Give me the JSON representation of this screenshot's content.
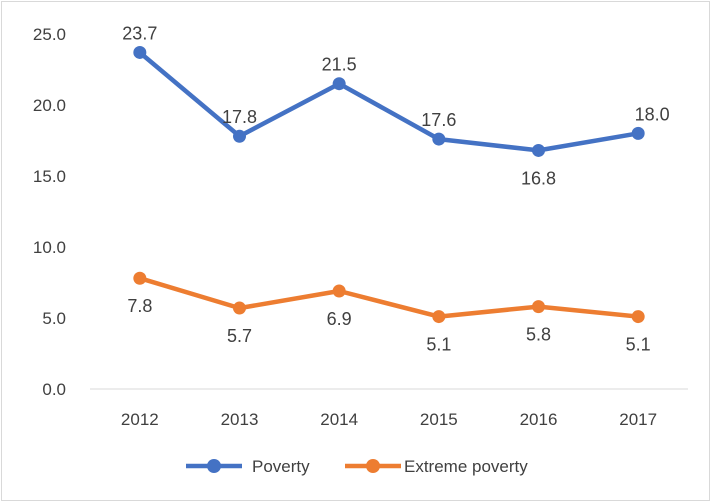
{
  "chart_data": {
    "type": "line",
    "title": "",
    "xlabel": "",
    "ylabel": "",
    "categories": [
      "2012",
      "2013",
      "2014",
      "2015",
      "2016",
      "2017"
    ],
    "ylim": [
      0,
      25
    ],
    "yticks": [
      "0.0",
      "5.0",
      "10.0",
      "15.0",
      "20.0",
      "25.0"
    ],
    "grid": false,
    "legend": "bottom",
    "series": [
      {
        "name": "Poverty",
        "color": "#4472c4",
        "values": [
          23.7,
          17.8,
          21.5,
          17.6,
          16.8,
          18.0
        ],
        "labels": [
          "23.7",
          "17.8",
          "21.5",
          "17.6",
          "16.8",
          "18.0"
        ]
      },
      {
        "name": "Extreme poverty",
        "color": "#ed7d31",
        "values": [
          7.8,
          5.7,
          6.9,
          5.1,
          5.8,
          5.1
        ],
        "labels": [
          "7.8",
          "5.7",
          "6.9",
          "5.1",
          "5.8",
          "5.1"
        ]
      }
    ]
  }
}
